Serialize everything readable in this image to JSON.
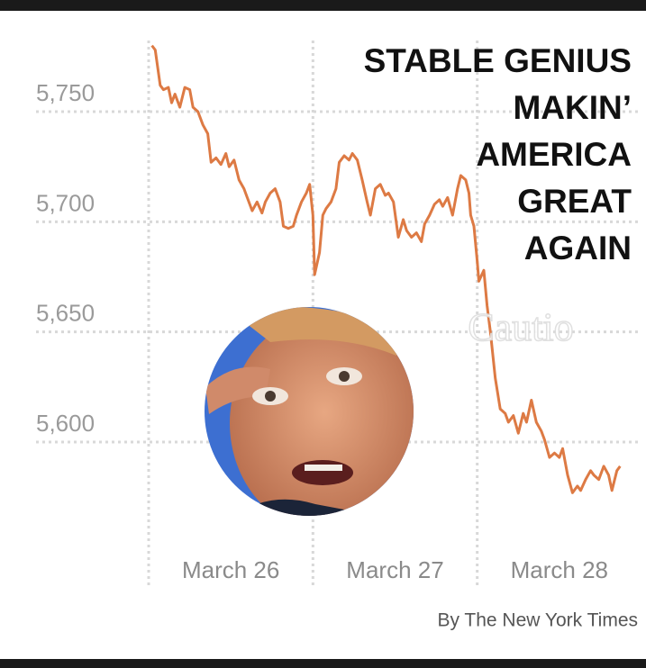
{
  "chart_data": {
    "type": "line",
    "title_lines": [
      "STABLE GENIUS",
      "MAKIN’",
      "AMERICA",
      "GREAT",
      "AGAIN"
    ],
    "watermark": "Cautio",
    "credit": "By The New York Times",
    "xlim": [
      0,
      3
    ],
    "xticks": [
      {
        "value": 0.5,
        "label": "March 26"
      },
      {
        "value": 1.5,
        "label": "March 27"
      },
      {
        "value": 2.5,
        "label": "March 28"
      }
    ],
    "ylim": [
      5535,
      5785
    ],
    "yticks": [
      {
        "value": 5600,
        "label": "5,600"
      },
      {
        "value": 5650,
        "label": "5,650"
      },
      {
        "value": 5700,
        "label": "5,700"
      },
      {
        "value": 5750,
        "label": "5,750"
      }
    ],
    "grid": true,
    "series": [
      {
        "color": "#dd7a44",
        "x": [
          0.02,
          0.04,
          0.07,
          0.09,
          0.12,
          0.14,
          0.16,
          0.19,
          0.22,
          0.25,
          0.27,
          0.3,
          0.33,
          0.36,
          0.38,
          0.41,
          0.44,
          0.47,
          0.49,
          0.52,
          0.55,
          0.58,
          0.6,
          0.63,
          0.66,
          0.69,
          0.71,
          0.74,
          0.77,
          0.8,
          0.82,
          0.85,
          0.88,
          0.9,
          0.93,
          0.96,
          0.98,
          1.0,
          1.01,
          1.04,
          1.06,
          1.08,
          1.11,
          1.14,
          1.16,
          1.19,
          1.22,
          1.24,
          1.27,
          1.3,
          1.33,
          1.35,
          1.38,
          1.41,
          1.44,
          1.46,
          1.49,
          1.52,
          1.55,
          1.57,
          1.6,
          1.63,
          1.66,
          1.68,
          1.71,
          1.74,
          1.77,
          1.79,
          1.82,
          1.85,
          1.88,
          1.9,
          1.93,
          1.95,
          1.96,
          1.98,
          2.0,
          2.01,
          2.04,
          2.06,
          2.08,
          2.11,
          2.14,
          2.17,
          2.19,
          2.22,
          2.25,
          2.28,
          2.3,
          2.33,
          2.36,
          2.39,
          2.41,
          2.44,
          2.47,
          2.5,
          2.52,
          2.55,
          2.58,
          2.61,
          2.63,
          2.66,
          2.69,
          2.71,
          2.74,
          2.77,
          2.8,
          2.82,
          2.85,
          2.87
        ],
        "values": [
          5780,
          5778,
          5762,
          5760,
          5761,
          5754,
          5758,
          5752,
          5761,
          5760,
          5752,
          5750,
          5744,
          5740,
          5727,
          5729,
          5726,
          5731,
          5725,
          5728,
          5719,
          5715,
          5711,
          5705,
          5709,
          5704,
          5709,
          5713,
          5715,
          5709,
          5698,
          5697,
          5698,
          5703,
          5709,
          5713,
          5717,
          5703,
          5676,
          5686,
          5703,
          5706,
          5709,
          5715,
          5727,
          5730,
          5728,
          5731,
          5728,
          5719,
          5709,
          5703,
          5715,
          5717,
          5712,
          5713,
          5709,
          5693,
          5701,
          5696,
          5693,
          5695,
          5691,
          5699,
          5703,
          5708,
          5710,
          5707,
          5711,
          5703,
          5715,
          5721,
          5719,
          5713,
          5703,
          5698,
          5682,
          5673,
          5678,
          5662,
          5650,
          5629,
          5615,
          5613,
          5609,
          5612,
          5604,
          5613,
          5609,
          5619,
          5609,
          5605,
          5601,
          5593,
          5595,
          5593,
          5597,
          5585,
          5577,
          5580,
          5578,
          5583,
          5587,
          5585,
          5583,
          5589,
          5585,
          5578,
          5587,
          5589
        ]
      }
    ]
  }
}
